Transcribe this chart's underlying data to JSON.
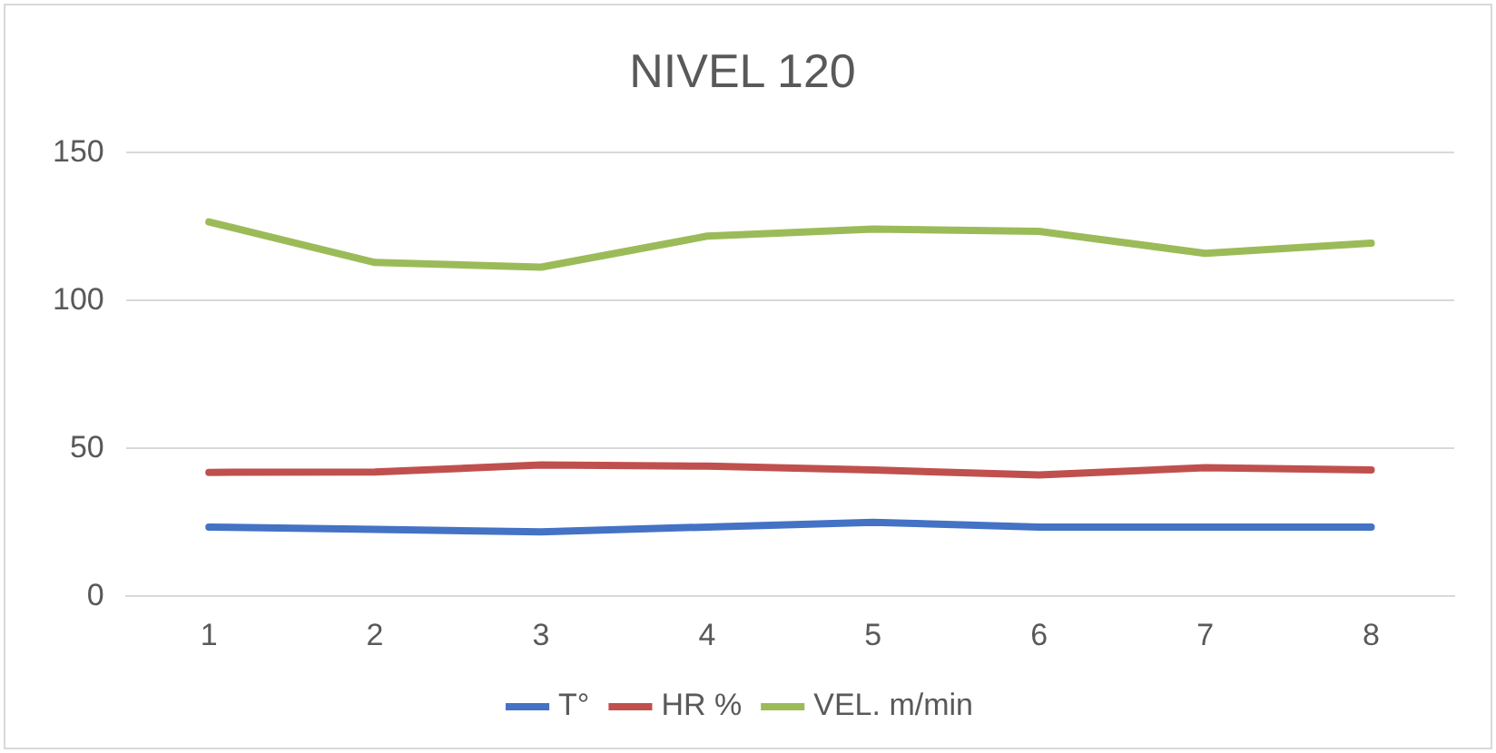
{
  "chart_data": {
    "type": "line",
    "title": "NIVEL 120",
    "categories": [
      "1",
      "2",
      "3",
      "4",
      "5",
      "6",
      "7",
      "8"
    ],
    "series": [
      {
        "name": "T°",
        "color": "#4472c4",
        "values": [
          23.4,
          22.6,
          21.8,
          23.4,
          25,
          23.4,
          23.4,
          23.4
        ]
      },
      {
        "name": "HR %",
        "color": "#c0504d",
        "values": [
          41.9,
          42,
          44.4,
          44,
          42.7,
          41,
          43.5,
          42.7
        ]
      },
      {
        "name": "VEL. m/min",
        "color": "#9bbb59",
        "values": [
          126.6,
          112.9,
          111.3,
          121.8,
          124.2,
          123.4,
          116,
          119.4
        ]
      }
    ],
    "ylim": [
      0,
      150
    ],
    "yticks": [
      0,
      50,
      100,
      150
    ],
    "grid": "y",
    "legend": "bottom",
    "marker": "none"
  }
}
